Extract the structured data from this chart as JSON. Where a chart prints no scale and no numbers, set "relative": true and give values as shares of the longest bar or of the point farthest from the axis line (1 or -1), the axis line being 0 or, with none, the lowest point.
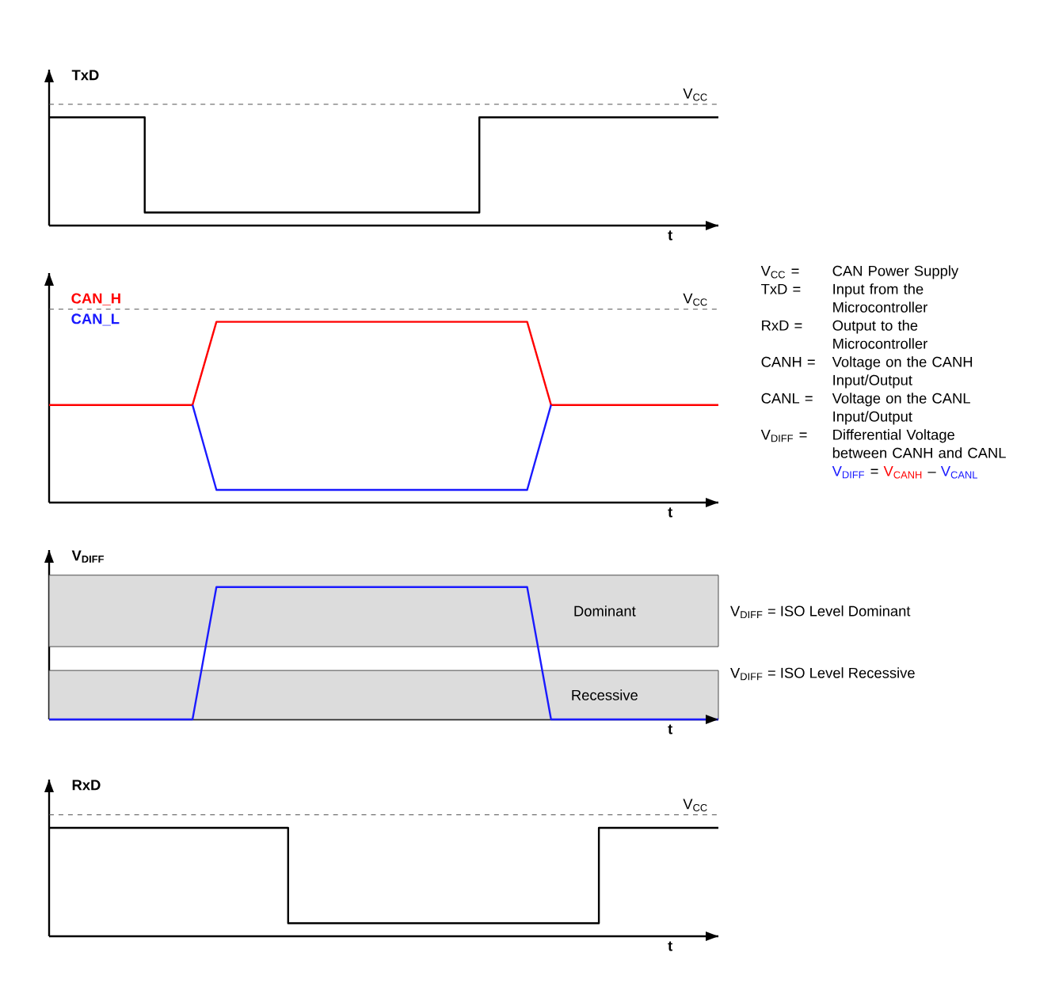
{
  "chart_data": [
    {
      "type": "step",
      "relative": true,
      "ylabel": "TxD",
      "xlabel": "t",
      "categories": [
        null,
        null,
        null,
        null,
        null,
        null,
        null,
        null,
        null,
        null,
        null,
        null,
        null,
        null,
        null,
        null,
        null,
        null,
        null,
        null,
        null,
        null,
        null,
        null,
        null,
        null,
        null,
        null,
        null
      ],
      "series": [
        {
          "color": "#000000",
          "values": [
            1,
            1,
            1,
            1,
            0.12,
            0.12,
            0.12,
            0.12,
            0.12,
            0.12,
            0.12,
            0.12,
            0.12,
            0.12,
            0.12,
            0.12,
            0.12,
            0.12,
            1,
            1,
            1,
            1,
            1,
            1,
            1,
            1,
            1,
            1,
            1
          ]
        }
      ],
      "ref_lines": [
        {
          "axis": "y",
          "value": 1.12,
          "label": "V$_{CC}$",
          "line_style": "dashed",
          "color": "#555555"
        }
      ]
    },
    {
      "type": "line",
      "relative": true,
      "xlabel": "t",
      "categories": [
        null,
        null,
        null,
        null,
        null,
        null,
        null,
        null,
        null,
        null,
        null,
        null,
        null,
        null,
        null,
        null,
        null,
        null,
        null,
        null,
        null,
        null,
        null,
        null,
        null,
        null,
        null,
        null,
        null
      ],
      "series": [
        {
          "name": "CAN_H",
          "color": "#ff0000",
          "values": [
            0.54,
            0.54,
            0.54,
            0.54,
            0.54,
            0.54,
            0.54,
            1,
            1,
            1,
            1,
            1,
            1,
            1,
            1,
            1,
            1,
            1,
            1,
            1,
            1,
            0.54,
            0.54,
            0.54,
            0.54,
            0.54,
            0.54,
            0.54,
            0.54
          ]
        },
        {
          "name": "CAN_L",
          "color": "#1a1aff",
          "values": [
            null,
            null,
            null,
            null,
            null,
            null,
            0.54,
            0.07,
            0.07,
            0.07,
            0.07,
            0.07,
            0.07,
            0.07,
            0.07,
            0.07,
            0.07,
            0.07,
            0.07,
            0.07,
            0.07,
            0.54,
            null,
            null,
            null,
            null,
            null,
            null,
            null
          ]
        }
      ],
      "ref_lines": [
        {
          "axis": "y",
          "value": 1.07,
          "label": "V$_{CC}$",
          "line_style": "dashed",
          "color": "#555555"
        }
      ],
      "annotations": [
        "V$_{CC}$ =",
        "CAN Power Supply",
        "TxD =",
        "Input from the Microcontroller",
        "RxD =",
        "Output to the Microcontroller",
        "CANH =",
        "Voltage on the CANH Input/Output",
        "CANL =",
        "Voltage on the CANL Input/Output",
        "V$_{DIFF}$ =",
        "Differential Voltage between CANH and CANL",
        "V$_{DIFF}$",
        "=",
        "V$_{CANH}$",
        "–",
        "V$_{CANL}$"
      ]
    },
    {
      "type": "line",
      "relative": true,
      "ylabel": "V$_{DIFF}$",
      "xlabel": "t",
      "categories": [
        null,
        null,
        null,
        null,
        null,
        null,
        null,
        null,
        null,
        null,
        null,
        null,
        null,
        null,
        null,
        null,
        null,
        null,
        null,
        null,
        null,
        null,
        null,
        null,
        null,
        null,
        null,
        null,
        null
      ],
      "series": [
        {
          "color": "#1a1aff",
          "values": [
            0,
            0,
            0,
            0,
            0,
            0,
            0,
            1,
            1,
            1,
            1,
            1,
            1,
            1,
            1,
            1,
            1,
            1,
            1,
            1,
            1,
            0,
            0,
            0,
            0,
            0,
            0,
            0,
            0
          ]
        }
      ],
      "bands": [
        {
          "axis": "y",
          "from": 0.55,
          "to": 1.09,
          "label": "Dominant",
          "color": "#dcdcdc"
        },
        {
          "axis": "y",
          "from": 0,
          "to": 0.37,
          "label": "Recessive",
          "color": "#dcdcdc"
        }
      ],
      "annotations": [
        "V$_{DIFF}$ = ISO Level Dominant",
        "V$_{DIFF}$ = ISO Level Recessive"
      ]
    },
    {
      "type": "step",
      "relative": true,
      "ylabel": "RxD",
      "xlabel": "t",
      "categories": [
        null,
        null,
        null,
        null,
        null,
        null,
        null,
        null,
        null,
        null,
        null,
        null,
        null,
        null,
        null,
        null,
        null,
        null,
        null,
        null,
        null,
        null,
        null,
        null,
        null,
        null,
        null,
        null,
        null
      ],
      "series": [
        {
          "color": "#000000",
          "values": [
            1,
            1,
            1,
            1,
            1,
            1,
            1,
            1,
            1,
            1,
            0.12,
            0.12,
            0.12,
            0.12,
            0.12,
            0.12,
            0.12,
            0.12,
            0.12,
            0.12,
            0.12,
            0.12,
            0.12,
            1,
            1,
            1,
            1,
            1,
            1
          ]
        }
      ],
      "ref_lines": [
        {
          "axis": "y",
          "value": 1.12,
          "label": "V$_{CC}$",
          "line_style": "dashed",
          "color": "#555555"
        }
      ]
    }
  ]
}
